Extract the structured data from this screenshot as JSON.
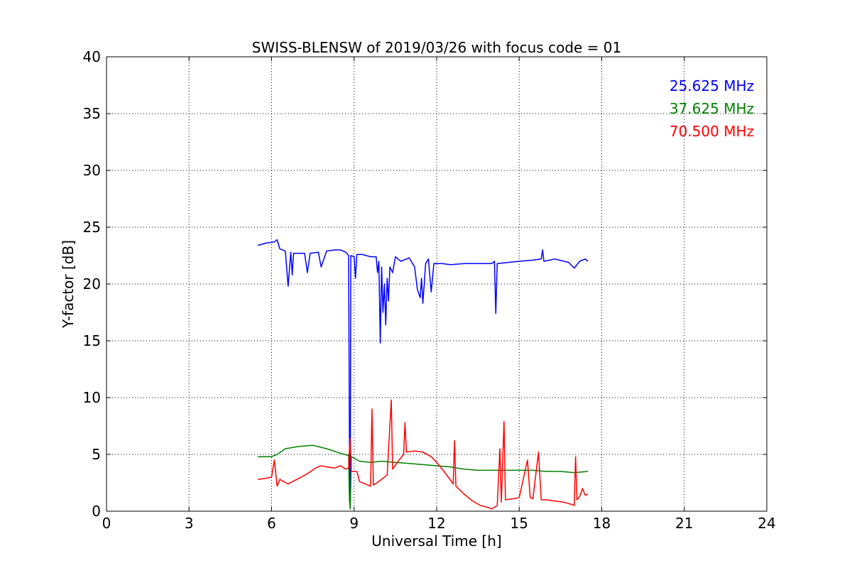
{
  "chart_data": {
    "type": "line",
    "title": "SWISS-BLENSW of 2019/03/26 with focus code = 01",
    "xlabel": "Universal Time [h]",
    "ylabel": "Y-factor [dB]",
    "xlim": [
      0,
      24
    ],
    "ylim": [
      0,
      40
    ],
    "xticks": [
      0,
      3,
      6,
      9,
      12,
      15,
      18,
      21,
      24
    ],
    "yticks": [
      0,
      5,
      10,
      15,
      20,
      25,
      30,
      35,
      40
    ],
    "grid": true,
    "legend_position": "top-right",
    "series": [
      {
        "name": "25.625 MHz",
        "color": "#0000ff",
        "points": [
          [
            5.5,
            23.4
          ],
          [
            5.8,
            23.6
          ],
          [
            6.1,
            23.7
          ],
          [
            6.2,
            23.9
          ],
          [
            6.3,
            23.1
          ],
          [
            6.5,
            22.9
          ],
          [
            6.6,
            19.8
          ],
          [
            6.7,
            22.8
          ],
          [
            6.75,
            20.8
          ],
          [
            6.8,
            22.7
          ],
          [
            7.0,
            22.7
          ],
          [
            7.2,
            22.7
          ],
          [
            7.3,
            21.0
          ],
          [
            7.4,
            22.7
          ],
          [
            7.7,
            22.8
          ],
          [
            7.8,
            21.5
          ],
          [
            8.0,
            22.9
          ],
          [
            8.3,
            23.0
          ],
          [
            8.5,
            23.0
          ],
          [
            8.7,
            22.8
          ],
          [
            8.8,
            22.5
          ],
          [
            8.83,
            6.0
          ],
          [
            8.86,
            0.3
          ],
          [
            8.88,
            22.5
          ],
          [
            9.0,
            22.4
          ],
          [
            9.05,
            20.5
          ],
          [
            9.1,
            22.6
          ],
          [
            9.3,
            22.6
          ],
          [
            9.6,
            22.4
          ],
          [
            9.8,
            22.4
          ],
          [
            9.85,
            21.0
          ],
          [
            9.9,
            22.0
          ],
          [
            9.95,
            14.8
          ],
          [
            10.0,
            21.5
          ],
          [
            10.05,
            17.5
          ],
          [
            10.1,
            20.0
          ],
          [
            10.15,
            16.4
          ],
          [
            10.2,
            20.5
          ],
          [
            10.25,
            18.5
          ],
          [
            10.3,
            21.5
          ],
          [
            10.4,
            21.0
          ],
          [
            10.5,
            22.4
          ],
          [
            10.7,
            22.0
          ],
          [
            11.0,
            22.3
          ],
          [
            11.2,
            21.5
          ],
          [
            11.3,
            19.5
          ],
          [
            11.4,
            18.8
          ],
          [
            11.45,
            20.5
          ],
          [
            11.5,
            18.3
          ],
          [
            11.6,
            21.8
          ],
          [
            11.7,
            22.2
          ],
          [
            11.8,
            19.3
          ],
          [
            11.9,
            21.8
          ],
          [
            12.2,
            21.8
          ],
          [
            12.5,
            21.7
          ],
          [
            13.0,
            21.8
          ],
          [
            13.5,
            21.8
          ],
          [
            14.0,
            21.8
          ],
          [
            14.1,
            22.0
          ],
          [
            14.15,
            17.4
          ],
          [
            14.2,
            21.8
          ],
          [
            14.6,
            21.9
          ],
          [
            15.0,
            22.0
          ],
          [
            15.5,
            22.1
          ],
          [
            15.8,
            22.2
          ],
          [
            15.85,
            23.0
          ],
          [
            15.9,
            22.0
          ],
          [
            16.3,
            22.2
          ],
          [
            16.8,
            21.9
          ],
          [
            17.0,
            21.4
          ],
          [
            17.2,
            22.0
          ],
          [
            17.4,
            22.2
          ],
          [
            17.5,
            22.0
          ]
        ]
      },
      {
        "name": "37.625 MHz",
        "color": "#008000",
        "points": [
          [
            5.5,
            4.8
          ],
          [
            5.8,
            4.8
          ],
          [
            6.0,
            4.8
          ],
          [
            6.2,
            5.0
          ],
          [
            6.5,
            5.5
          ],
          [
            7.0,
            5.7
          ],
          [
            7.5,
            5.8
          ],
          [
            8.0,
            5.5
          ],
          [
            8.5,
            5.1
          ],
          [
            8.8,
            4.9
          ],
          [
            8.83,
            1.0
          ],
          [
            8.86,
            0.2
          ],
          [
            8.9,
            4.8
          ],
          [
            9.2,
            4.4
          ],
          [
            9.6,
            4.3
          ],
          [
            10.0,
            4.4
          ],
          [
            10.5,
            4.3
          ],
          [
            11.0,
            4.2
          ],
          [
            11.5,
            4.1
          ],
          [
            12.0,
            4.0
          ],
          [
            12.5,
            3.9
          ],
          [
            13.0,
            3.7
          ],
          [
            13.5,
            3.6
          ],
          [
            14.0,
            3.6
          ],
          [
            14.5,
            3.6
          ],
          [
            15.0,
            3.6
          ],
          [
            15.5,
            3.6
          ],
          [
            16.0,
            3.5
          ],
          [
            16.5,
            3.5
          ],
          [
            17.0,
            3.4
          ],
          [
            17.5,
            3.5
          ]
        ]
      },
      {
        "name": "70.500 MHz",
        "color": "#ff0000",
        "points": [
          [
            5.5,
            2.8
          ],
          [
            5.8,
            2.9
          ],
          [
            6.0,
            3.0
          ],
          [
            6.1,
            4.5
          ],
          [
            6.2,
            2.2
          ],
          [
            6.3,
            2.8
          ],
          [
            6.6,
            2.4
          ],
          [
            7.0,
            2.9
          ],
          [
            7.3,
            3.3
          ],
          [
            7.6,
            3.8
          ],
          [
            7.8,
            4.0
          ],
          [
            8.0,
            3.9
          ],
          [
            8.3,
            3.8
          ],
          [
            8.5,
            4.0
          ],
          [
            8.7,
            3.7
          ],
          [
            8.8,
            3.8
          ],
          [
            8.85,
            6.4
          ],
          [
            8.9,
            3.5
          ],
          [
            9.1,
            3.5
          ],
          [
            9.2,
            2.6
          ],
          [
            9.5,
            2.3
          ],
          [
            9.6,
            2.2
          ],
          [
            9.65,
            9.0
          ],
          [
            9.7,
            2.3
          ],
          [
            10.0,
            2.8
          ],
          [
            10.2,
            3.2
          ],
          [
            10.35,
            9.8
          ],
          [
            10.4,
            3.7
          ],
          [
            10.6,
            4.4
          ],
          [
            10.8,
            5.0
          ],
          [
            10.85,
            7.8
          ],
          [
            10.9,
            5.2
          ],
          [
            11.2,
            5.3
          ],
          [
            11.5,
            5.2
          ],
          [
            11.8,
            4.8
          ],
          [
            12.0,
            4.3
          ],
          [
            12.3,
            3.4
          ],
          [
            12.6,
            2.4
          ],
          [
            12.65,
            6.2
          ],
          [
            12.7,
            2.2
          ],
          [
            13.0,
            1.5
          ],
          [
            13.3,
            0.9
          ],
          [
            13.6,
            0.5
          ],
          [
            13.9,
            0.3
          ],
          [
            14.0,
            0.2
          ],
          [
            14.2,
            0.5
          ],
          [
            14.3,
            5.5
          ],
          [
            14.35,
            0.8
          ],
          [
            14.45,
            7.9
          ],
          [
            14.5,
            1.0
          ],
          [
            14.8,
            1.1
          ],
          [
            15.0,
            1.2
          ],
          [
            15.3,
            4.5
          ],
          [
            15.4,
            1.2
          ],
          [
            15.5,
            1.1
          ],
          [
            15.7,
            5.2
          ],
          [
            15.8,
            1.0
          ],
          [
            16.0,
            1.0
          ],
          [
            16.3,
            0.9
          ],
          [
            16.6,
            0.8
          ],
          [
            16.9,
            0.6
          ],
          [
            17.0,
            0.5
          ],
          [
            17.05,
            4.8
          ],
          [
            17.1,
            1.0
          ],
          [
            17.2,
            1.3
          ],
          [
            17.3,
            2.0
          ],
          [
            17.4,
            1.4
          ],
          [
            17.5,
            1.5
          ]
        ]
      }
    ]
  }
}
